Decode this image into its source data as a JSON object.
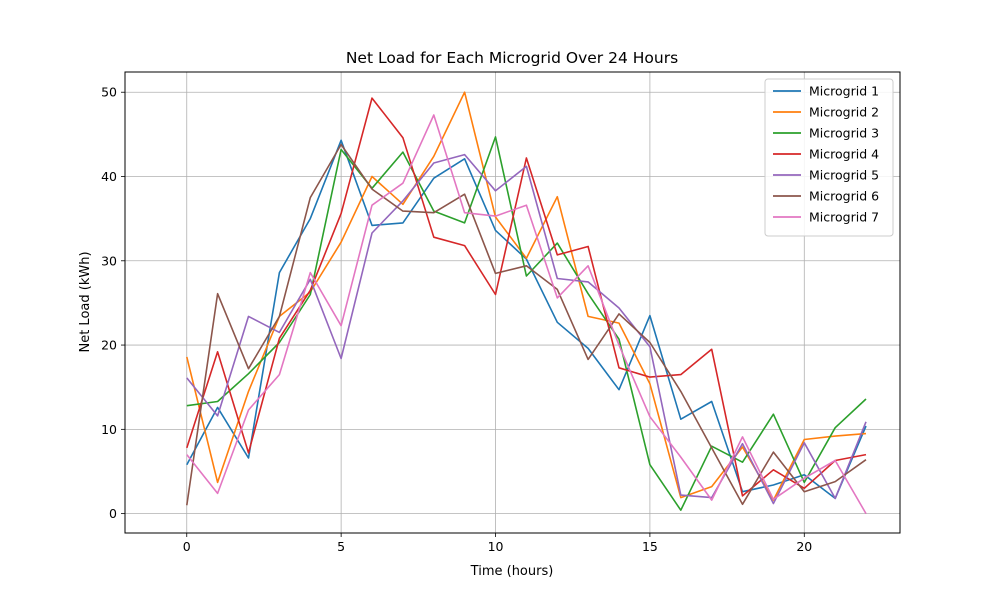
{
  "chart_data": {
    "type": "line",
    "title": "Net Load for Each Microgrid Over 24 Hours",
    "xlabel": "Time (hours)",
    "ylabel": "Net Load (kWh)",
    "xlim": [
      -2.0,
      23.1
    ],
    "ylim": [
      -2.3,
      52.4
    ],
    "xticks": [
      0,
      5,
      10,
      15,
      20
    ],
    "yticks": [
      0,
      10,
      20,
      30,
      40,
      50
    ],
    "grid": true,
    "legend_position": "top-right",
    "x": [
      0,
      1,
      2,
      3,
      4,
      5,
      6,
      7,
      8,
      9,
      10,
      11,
      12,
      13,
      14,
      15,
      16,
      17,
      18,
      19,
      20,
      21,
      22
    ],
    "series": [
      {
        "name": "Microgrid 1",
        "color": "#1f77b4",
        "values": [
          5.8,
          12.6,
          6.6,
          28.6,
          35.0,
          44.3,
          34.2,
          34.5,
          39.8,
          42.1,
          33.6,
          30.2,
          22.7,
          19.6,
          14.7,
          23.5,
          11.2,
          13.3,
          2.6,
          3.4,
          4.6,
          1.8,
          10.4
        ]
      },
      {
        "name": "Microgrid 2",
        "color": "#ff7f0e",
        "values": [
          18.6,
          3.7,
          14.5,
          23.4,
          26.3,
          32.2,
          40.0,
          36.7,
          42.4,
          50.0,
          35.2,
          30.3,
          37.6,
          23.4,
          22.6,
          15.4,
          1.9,
          3.2,
          7.9,
          1.6,
          8.8,
          9.2,
          9.5
        ]
      },
      {
        "name": "Microgrid 3",
        "color": "#2ca02c",
        "values": [
          12.8,
          13.3,
          16.6,
          20.3,
          26.0,
          43.2,
          38.6,
          42.9,
          35.9,
          34.5,
          44.7,
          28.2,
          32.1,
          26.1,
          20.7,
          5.8,
          0.4,
          8.0,
          6.1,
          11.8,
          3.7,
          10.2,
          13.6
        ]
      },
      {
        "name": "Microgrid 4",
        "color": "#d62728",
        "values": [
          7.8,
          19.2,
          7.2,
          20.8,
          26.5,
          35.6,
          49.3,
          44.6,
          32.8,
          31.8,
          26.0,
          42.2,
          30.7,
          31.7,
          17.3,
          16.2,
          16.5,
          19.5,
          2.1,
          5.2,
          3.0,
          6.3,
          7.0
        ]
      },
      {
        "name": "Microgrid 5",
        "color": "#9467bd",
        "values": [
          16.1,
          11.6,
          23.4,
          21.5,
          27.8,
          18.4,
          33.3,
          37.1,
          41.6,
          42.6,
          38.3,
          41.2,
          27.9,
          27.5,
          24.4,
          19.8,
          2.2,
          1.9,
          8.3,
          1.2,
          8.4,
          1.8,
          10.9
        ]
      },
      {
        "name": "Microgrid 6",
        "color": "#8c564b",
        "values": [
          1.0,
          26.1,
          17.2,
          23.4,
          37.5,
          43.8,
          38.5,
          35.9,
          35.7,
          37.9,
          28.5,
          29.4,
          26.6,
          18.3,
          23.7,
          20.3,
          14.5,
          7.8,
          1.1,
          7.3,
          2.6,
          3.8,
          6.4
        ]
      },
      {
        "name": "Microgrid 7",
        "color": "#e377c2",
        "values": [
          7.0,
          2.4,
          12.3,
          16.5,
          28.6,
          22.3,
          36.6,
          39.2,
          47.3,
          35.7,
          35.3,
          36.6,
          25.6,
          29.4,
          20.0,
          11.5,
          6.7,
          1.6,
          9.1,
          1.7,
          4.2,
          6.3,
          0.0
        ]
      }
    ]
  }
}
